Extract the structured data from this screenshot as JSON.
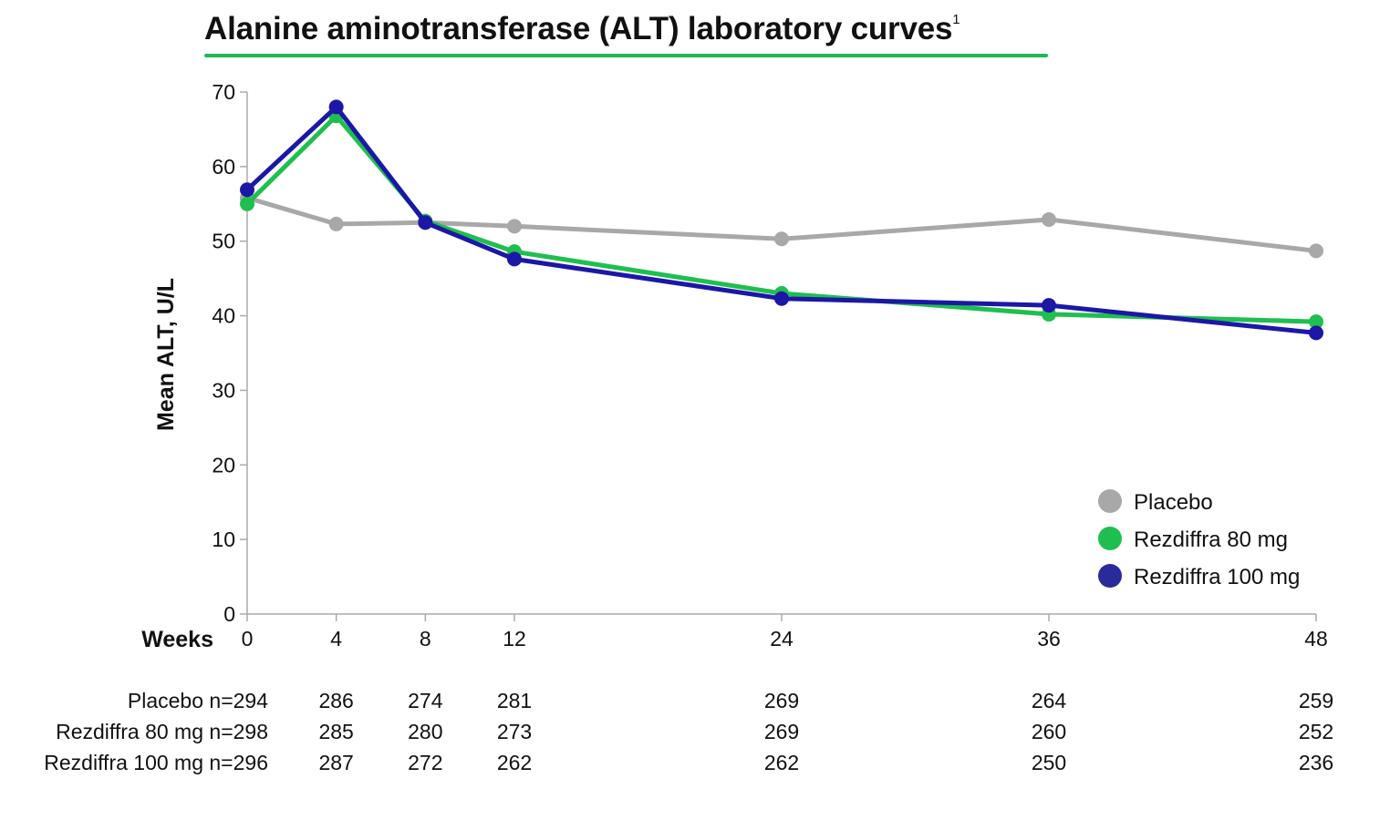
{
  "title": "Alanine aminotransferase (ALT) laboratory curves",
  "title_superscript": "1",
  "colors": {
    "accent_underline": "#1db954",
    "axis": "#aaaaaa",
    "text": "#111111"
  },
  "chart_data": {
    "type": "line",
    "title": "Alanine aminotransferase (ALT) laboratory curves",
    "xlabel": "Weeks",
    "ylabel": "Mean ALT, U/L",
    "x": [
      0,
      4,
      8,
      12,
      24,
      36,
      48
    ],
    "x_tick_labels": [
      "0",
      "4",
      "8",
      "12",
      "24",
      "36",
      "48"
    ],
    "xlim": [
      0,
      48
    ],
    "ylim": [
      0,
      70
    ],
    "y_ticks": [
      0,
      10,
      20,
      30,
      40,
      50,
      60,
      70
    ],
    "y_tick_labels": [
      "0",
      "10",
      "20",
      "30",
      "40",
      "50",
      "60",
      "70"
    ],
    "grid": false,
    "legend_position": "bottom-right",
    "series": [
      {
        "name": "Placebo",
        "color": "#a8a8a8",
        "values": [
          55.8,
          52.3,
          52.5,
          52.0,
          50.3,
          52.9,
          48.7
        ]
      },
      {
        "name": "Rezdiffra 80 mg",
        "color": "#1fbf4f",
        "values": [
          55.0,
          66.8,
          52.7,
          48.6,
          43.0,
          40.2,
          39.2
        ]
      },
      {
        "name": "Rezdiffra 100 mg",
        "color": "#1c17a6",
        "values": [
          56.9,
          68.0,
          52.5,
          47.6,
          42.3,
          41.4,
          37.7
        ]
      }
    ],
    "legend": [
      {
        "label": "Placebo",
        "color": "#a8a8a8"
      },
      {
        "label": "Rezdiffra 80 mg",
        "color": "#1fbf4f"
      },
      {
        "label": "Rezdiffra 100 mg",
        "color": "#2b2a9a"
      }
    ],
    "at_risk": [
      {
        "label": "Placebo n=",
        "counts": [
          "294",
          "286",
          "274",
          "281",
          "269",
          "264",
          "259"
        ]
      },
      {
        "label": "Rezdiffra 80 mg n=",
        "counts": [
          "298",
          "285",
          "280",
          "273",
          "269",
          "260",
          "252"
        ]
      },
      {
        "label": "Rezdiffra 100 mg n=",
        "counts": [
          "296",
          "287",
          "272",
          "262",
          "262",
          "250",
          "236"
        ]
      }
    ]
  }
}
